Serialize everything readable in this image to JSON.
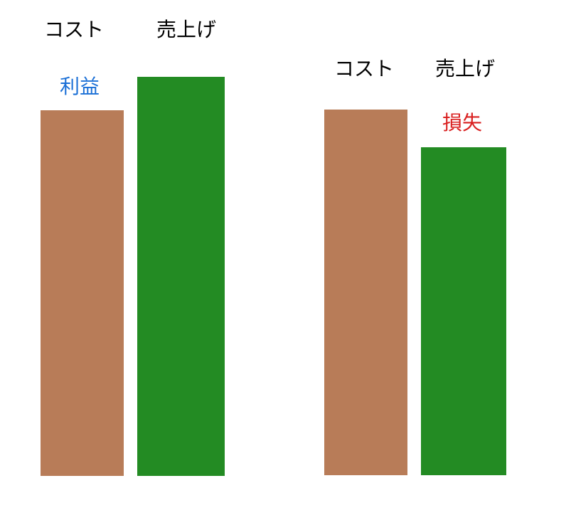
{
  "colors": {
    "cost_bar": "#b87c58",
    "sales_bar": "#238b23",
    "profit_text": "#1a6fd6",
    "loss_text": "#d92020",
    "label_text": "#000000"
  },
  "scenarios": [
    {
      "cost_label": "コスト",
      "sales_label": "売上げ",
      "difference_label": "利益",
      "cost_value": 100,
      "sales_value": 109
    },
    {
      "cost_label": "コスト",
      "sales_label": "売上げ",
      "difference_label": "損失",
      "cost_value": 100,
      "sales_value": 90
    }
  ]
}
